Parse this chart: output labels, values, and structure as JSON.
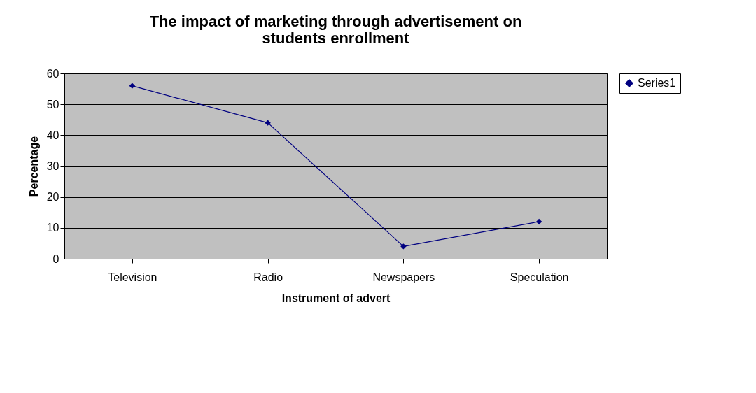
{
  "chart_data": {
    "type": "line",
    "title": "The impact of marketing through advertisement on students enrollment",
    "xlabel": "Instrument of advert",
    "ylabel": "Percentage",
    "categories": [
      "Television",
      "Radio",
      "Newspapers",
      "Speculation"
    ],
    "series": [
      {
        "name": "Series1",
        "color": "#000080",
        "values": [
          56,
          44,
          4,
          12
        ]
      }
    ],
    "ylim": [
      0,
      60
    ],
    "yticks": [
      0,
      10,
      20,
      30,
      40,
      50,
      60
    ],
    "grid": "y",
    "legend": "right",
    "marker": "diamond",
    "line_style": "solid"
  }
}
